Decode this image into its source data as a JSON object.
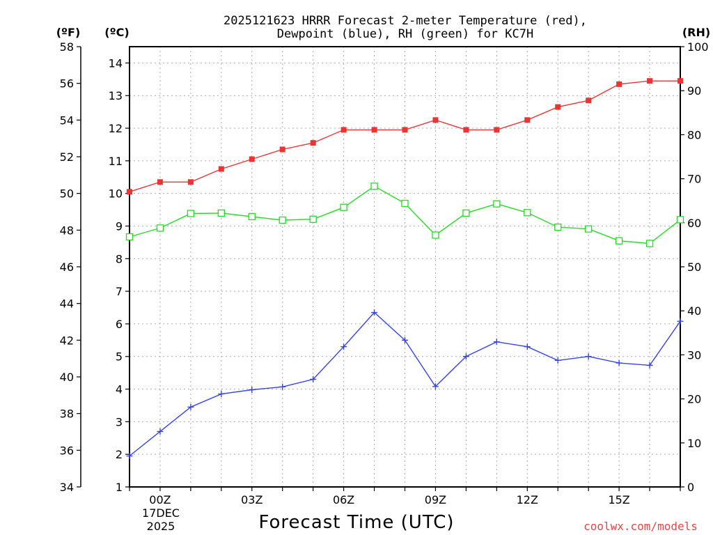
{
  "chart_data": {
    "type": "line",
    "title": [
      "2025121623 HRRR Forecast 2-meter Temperature (red),",
      "Dewpoint (blue), RH (green) for KC7H"
    ],
    "xlabel": "Forecast Time (UTC)",
    "x_hours": [
      -1,
      0,
      1,
      2,
      3,
      4,
      5,
      6,
      7,
      8,
      9,
      10,
      11,
      12,
      13,
      14,
      15,
      16,
      17
    ],
    "x_ticks": [
      {
        "hour": 0,
        "label": "00Z"
      },
      {
        "hour": 3,
        "label": "03Z"
      },
      {
        "hour": 6,
        "label": "06Z"
      },
      {
        "hour": 9,
        "label": "09Z"
      },
      {
        "hour": 12,
        "label": "12Z"
      },
      {
        "hour": 15,
        "label": "15Z"
      }
    ],
    "date_labels": [
      "17DEC",
      "2025"
    ],
    "xlim": [
      -1,
      17
    ],
    "axes": {
      "fahrenheit": {
        "label": "(ºF)",
        "range": [
          34,
          58
        ],
        "ticks": [
          34,
          36,
          38,
          40,
          42,
          44,
          46,
          48,
          50,
          52,
          54,
          56,
          58
        ]
      },
      "celsius": {
        "label": "(ºC)",
        "range": [
          1,
          14.5
        ],
        "ticks": [
          1,
          2,
          3,
          4,
          5,
          6,
          7,
          8,
          9,
          10,
          11,
          12,
          13,
          14
        ]
      },
      "rh": {
        "label": "(RH)",
        "range": [
          0,
          100
        ],
        "ticks": [
          0,
          10,
          20,
          30,
          40,
          50,
          60,
          70,
          80,
          90,
          100
        ]
      }
    },
    "series": [
      {
        "name": "Temperature",
        "unit": "C",
        "color": "#ee3333",
        "marker": "filled-square",
        "values": [
          10.05,
          10.35,
          10.35,
          10.75,
          11.05,
          11.35,
          11.55,
          11.95,
          11.95,
          11.95,
          12.25,
          11.95,
          11.95,
          12.25,
          12.65,
          12.85,
          13.35,
          13.45,
          13.45
        ]
      },
      {
        "name": "Dewpoint",
        "unit": "C",
        "color": "#3344ee",
        "marker": "plus",
        "values": [
          1.95,
          2.7,
          3.45,
          3.85,
          3.98,
          4.07,
          4.3,
          5.3,
          6.35,
          5.5,
          4.08,
          5.0,
          5.45,
          5.3,
          4.88,
          5.0,
          4.8,
          4.73,
          6.08
        ]
      },
      {
        "name": "RH",
        "unit": "%",
        "color": "#22dd22",
        "marker": "open-square",
        "values": [
          56.8,
          58.8,
          62.1,
          62.2,
          61.4,
          60.6,
          60.8,
          63.5,
          68.3,
          64.4,
          57.2,
          62.2,
          64.3,
          62.3,
          59.0,
          58.6,
          55.9,
          55.3,
          60.7
        ]
      }
    ]
  },
  "credit": {
    "text": "coolwx.com/models",
    "color": "#e04848"
  }
}
